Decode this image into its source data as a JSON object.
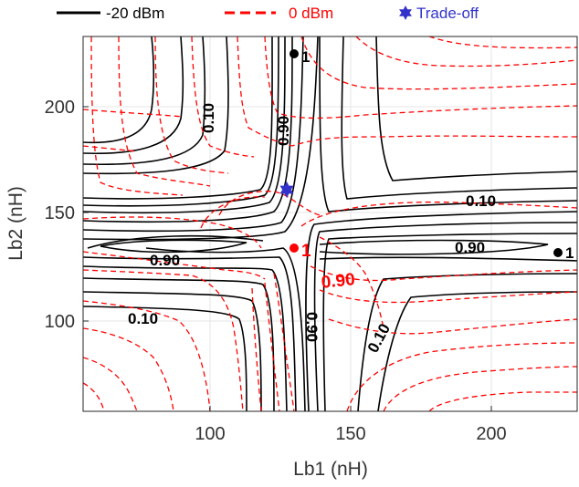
{
  "chart_data": {
    "type": "contour",
    "xlabel": "Lb1 (nH)",
    "ylabel": "Lb2 (nH)",
    "xlim": [
      55,
      232
    ],
    "ylim": [
      55,
      237
    ],
    "x_ticks": [
      "100",
      "150",
      "200"
    ],
    "y_ticks": [
      "100",
      "150",
      "200"
    ],
    "grid": true,
    "legend_placement": "top",
    "legend": [
      {
        "label": "-20 dBm",
        "color": "#000000",
        "style": "solid"
      },
      {
        "label": "0 dBm",
        "color": "#ff0000",
        "style": "dashed"
      },
      {
        "label": "Trade-off",
        "color": "#3333cc",
        "style": "hexagram"
      }
    ],
    "series": [
      {
        "name": "-20 dBm",
        "color": "#000000",
        "peak": [
          132,
          132
        ],
        "peak_label": "1",
        "contour_labels": [
          "0.10",
          "0.90",
          "0.10",
          "0.90",
          "0.90",
          "0.10",
          "0.90",
          "0.10"
        ]
      },
      {
        "name": "0 dBm",
        "color": "#ff0000",
        "peak": [
          132,
          132
        ],
        "peak_label": "1",
        "contour_labels": [
          "0.90"
        ]
      }
    ],
    "points": [
      {
        "label": "1",
        "x": 130,
        "y": 225,
        "color": "#000000"
      },
      {
        "label": "1",
        "x": 225,
        "y": 131,
        "color": "#000000"
      },
      {
        "label": "1",
        "x": 132,
        "y": 132,
        "color": "#ff0000"
      },
      {
        "label": "",
        "x": 128,
        "y": 160,
        "color": "#3333cc",
        "marker": "hexagram"
      }
    ]
  }
}
